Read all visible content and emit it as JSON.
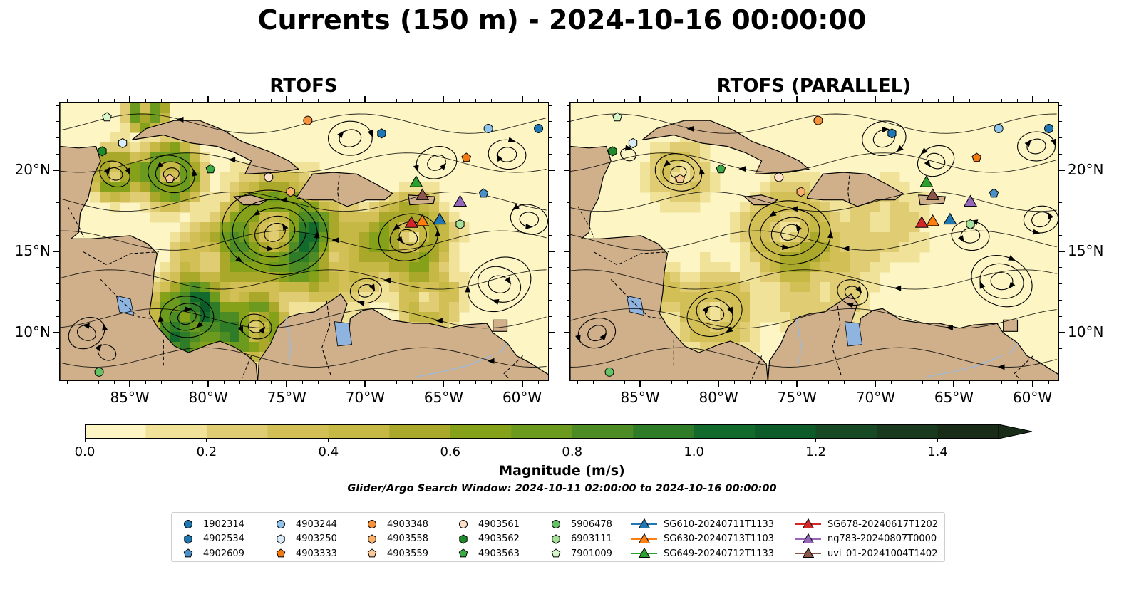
{
  "figure_title": "Currents (150 m) - 2024-10-16 00:00:00",
  "panels": [
    {
      "title": "RTOFS"
    },
    {
      "title": "RTOFS (PARALLEL)"
    }
  ],
  "lon_ticks": [
    "85°W",
    "80°W",
    "75°W",
    "70°W",
    "65°W",
    "60°W"
  ],
  "lon_values": [
    -85,
    -80,
    -75,
    -70,
    -65,
    -60
  ],
  "lat_ticks": [
    "20°N",
    "15°N",
    "10°N"
  ],
  "lat_values": [
    20,
    15,
    10
  ],
  "extent": {
    "lon": [
      -89.5,
      -58.3
    ],
    "lat": [
      7,
      24.2
    ]
  },
  "colorbar": {
    "label": "Magnitude (m/s)",
    "ticks": [
      "0.0",
      "0.2",
      "0.4",
      "0.6",
      "0.8",
      "1.0",
      "1.2",
      "1.4"
    ],
    "tick_values": [
      0.0,
      0.2,
      0.4,
      0.6,
      0.8,
      1.0,
      1.2,
      1.4
    ],
    "range": [
      0,
      1.5
    ],
    "extend": "max",
    "colors": [
      "#fdf6c4",
      "#f1e29a",
      "#e0cd73",
      "#d2bf55",
      "#c6b844",
      "#a9a82b",
      "#85a11a",
      "#6c9a1f",
      "#4d8c24",
      "#2f7c28",
      "#126b2c",
      "#0e5b2a",
      "#174a24",
      "#1a3a1f",
      "#192c18"
    ]
  },
  "search_window": "Glider/Argo Search Window: 2024-10-11 02:00:00 to 2024-10-16 00:00:00",
  "legend": {
    "columns": [
      [
        {
          "label": "1902314",
          "marker": "circle",
          "color": "#1f77b4"
        },
        {
          "label": "4902534",
          "marker": "hexagon",
          "color": "#1f77b4"
        },
        {
          "label": "4902609",
          "marker": "pentagon",
          "color": "#4a90c8"
        }
      ],
      [
        {
          "label": "4903244",
          "marker": "circle",
          "color": "#8ec3ea"
        },
        {
          "label": "4903250",
          "marker": "hexagon",
          "color": "#d8ecf8"
        },
        {
          "label": "4903333",
          "marker": "pentagon",
          "color": "#f27a10"
        }
      ],
      [
        {
          "label": "4903348",
          "marker": "circle",
          "color": "#f5923a"
        },
        {
          "label": "4903558",
          "marker": "hexagon",
          "color": "#f8b06a"
        },
        {
          "label": "4903559",
          "marker": "pentagon",
          "color": "#fbc998"
        }
      ],
      [
        {
          "label": "4903561",
          "marker": "circle",
          "color": "#fde0c8"
        },
        {
          "label": "4903562",
          "marker": "hexagon",
          "color": "#1f8a2a"
        },
        {
          "label": "4903563",
          "marker": "pentagon",
          "color": "#3caa44"
        }
      ],
      [
        {
          "label": "5906478",
          "marker": "circle",
          "color": "#66c266"
        },
        {
          "label": "6903111",
          "marker": "hexagon",
          "color": "#a6e09a"
        },
        {
          "label": "7901009",
          "marker": "pentagon",
          "color": "#d6f5c8"
        }
      ],
      [
        {
          "label": "SG610-20240711T1133",
          "marker": "triangle",
          "color": "#1f77b4"
        },
        {
          "label": "SG630-20240713T1103",
          "marker": "triangle",
          "color": "#ff7f0e"
        },
        {
          "label": "SG649-20240712T1133",
          "marker": "triangle",
          "color": "#2ca02c"
        }
      ],
      [
        {
          "label": "SG678-20240617T1202",
          "marker": "triangle",
          "color": "#d62728"
        },
        {
          "label": "ng783-20240807T0000",
          "marker": "triangle",
          "color": "#9467bd"
        },
        {
          "label": "uvi_01-20241004T1402",
          "marker": "triangle",
          "color": "#8c564b"
        }
      ]
    ]
  },
  "argo_floats": [
    {
      "id": "1902314",
      "lon": -59.0,
      "lat": 22.6
    },
    {
      "id": "4902534",
      "lon": -69.0,
      "lat": 22.3
    },
    {
      "id": "4902609",
      "lon": -62.5,
      "lat": 18.6
    },
    {
      "id": "4903244",
      "lon": -62.2,
      "lat": 22.6
    },
    {
      "id": "4903250",
      "lon": -85.5,
      "lat": 21.7
    },
    {
      "id": "4903333",
      "lon": -63.6,
      "lat": 20.8
    },
    {
      "id": "4903348",
      "lon": -73.7,
      "lat": 23.1
    },
    {
      "id": "4903558",
      "lon": -74.8,
      "lat": 18.7
    },
    {
      "id": "4903559",
      "lon": -82.5,
      "lat": 19.5
    },
    {
      "id": "4903561",
      "lon": -76.2,
      "lat": 19.6
    },
    {
      "id": "4903562",
      "lon": -86.8,
      "lat": 21.2
    },
    {
      "id": "4903563",
      "lon": -79.9,
      "lat": 20.1
    },
    {
      "id": "5906478",
      "lon": -87.0,
      "lat": 7.6
    },
    {
      "id": "6903111",
      "lon": -64.0,
      "lat": 16.7
    },
    {
      "id": "7901009",
      "lon": -86.5,
      "lat": 23.3
    }
  ],
  "gliders": [
    {
      "id": "SG610-20240711T1133",
      "lon": -65.3,
      "lat": 17.0
    },
    {
      "id": "SG630-20240713T1103",
      "lon": -66.4,
      "lat": 16.9
    },
    {
      "id": "SG649-20240712T1133",
      "lon": -66.8,
      "lat": 19.3
    },
    {
      "id": "SG678-20240617T1202",
      "lon": -67.1,
      "lat": 16.8
    },
    {
      "id": "ng783-20240807T0000",
      "lon": -64.0,
      "lat": 18.1
    },
    {
      "id": "uvi_01-20241004T1402",
      "lon": -66.4,
      "lat": 18.5
    }
  ]
}
